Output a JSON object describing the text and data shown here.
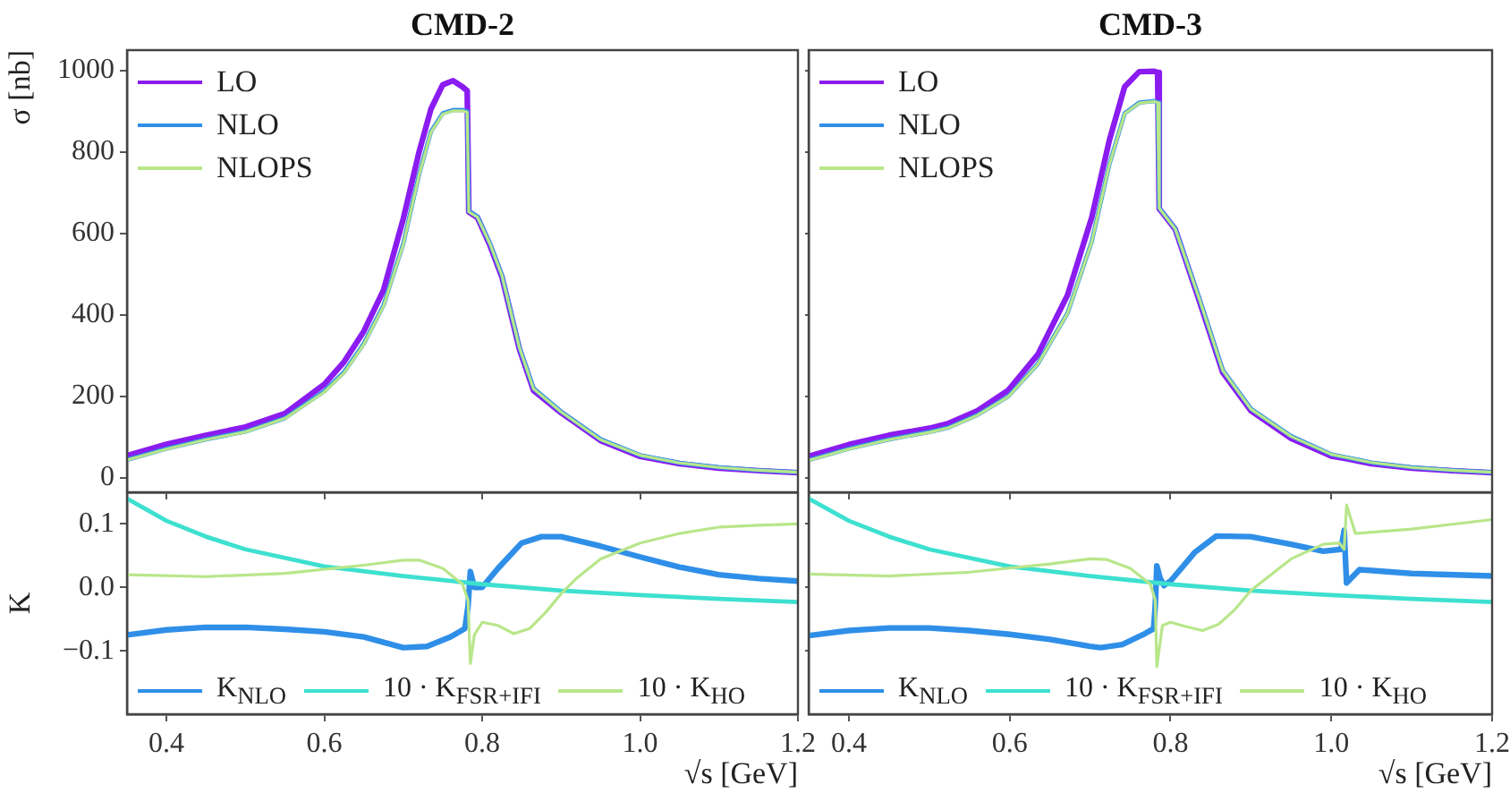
{
  "chart_data": [
    {
      "type": "line",
      "title": "CMD-2",
      "ylabel": "σ [nb]",
      "xlim": [
        0.35,
        1.2
      ],
      "xticks": [
        0.4,
        0.6,
        0.8,
        1,
        1.2
      ],
      "ylim": [
        -35,
        1050
      ],
      "yticks": [
        0,
        200,
        400,
        600,
        800,
        1000
      ],
      "tick_labels": "y",
      "legend": "top left",
      "series": [
        {
          "name": "LO",
          "color": "#8a1cf0",
          "x": [
            0.35,
            0.4,
            0.45,
            0.5,
            0.55,
            0.6,
            0.625,
            0.65,
            0.675,
            0.7,
            0.72,
            0.735,
            0.75,
            0.763,
            0.775,
            0.781,
            0.783,
            0.794,
            0.81,
            0.825,
            0.847,
            0.865,
            0.9,
            0.95,
            1.0,
            1.05,
            1.1,
            1.15,
            1.2
          ],
          "values": [
            55,
            83,
            105,
            125,
            158,
            230,
            285,
            360,
            461,
            636,
            800,
            905,
            965,
            975,
            960,
            950,
            653,
            639,
            570,
            493,
            317,
            215,
            160,
            92,
            53,
            35,
            24,
            18,
            13
          ]
        },
        {
          "name": "NLO",
          "color": "#2f8fe8",
          "x": [
            0.35,
            0.4,
            0.45,
            0.5,
            0.55,
            0.6,
            0.625,
            0.65,
            0.675,
            0.7,
            0.72,
            0.735,
            0.75,
            0.763,
            0.775,
            0.781,
            0.783,
            0.794,
            0.81,
            0.825,
            0.847,
            0.865,
            0.9,
            0.95,
            1.0,
            1.05,
            1.1,
            1.15,
            1.2
          ],
          "values": [
            45,
            72,
            95,
            114,
            147,
            213,
            260,
            330,
            424,
            575,
            745,
            850,
            895,
            903,
            903,
            900,
            655,
            642,
            575,
            498,
            322,
            220,
            163,
            95,
            56,
            37,
            26,
            19,
            14
          ]
        },
        {
          "name": "NLOPS",
          "color": "#b8e68a",
          "x": [
            0.35,
            0.4,
            0.45,
            0.5,
            0.55,
            0.6,
            0.625,
            0.65,
            0.675,
            0.7,
            0.72,
            0.735,
            0.75,
            0.763,
            0.775,
            0.781,
            0.783,
            0.794,
            0.81,
            0.825,
            0.847,
            0.865,
            0.9,
            0.95,
            1.0,
            1.05,
            1.1,
            1.15,
            1.2
          ],
          "values": [
            44,
            71,
            94,
            113,
            146,
            211,
            258,
            328,
            422,
            573,
            743,
            848,
            893,
            901,
            901,
            898,
            653,
            640,
            574,
            497,
            321,
            219,
            162,
            94,
            56,
            37,
            26,
            19,
            14
          ]
        }
      ]
    },
    {
      "type": "line",
      "title": "CMD-3",
      "xlim": [
        0.35,
        1.2
      ],
      "xticks": [
        0.4,
        0.6,
        0.8,
        1,
        1.2
      ],
      "ylim": [
        -35,
        1050
      ],
      "yticks": [
        0,
        200,
        400,
        600,
        800,
        1000
      ],
      "tick_labels": false,
      "legend": "top left",
      "series": [
        {
          "name": "LO",
          "color": "#8a1cf0",
          "x": [
            0.35,
            0.4,
            0.45,
            0.5,
            0.524,
            0.56,
            0.598,
            0.635,
            0.672,
            0.702,
            0.724,
            0.743,
            0.761,
            0.78,
            0.784,
            0.786,
            0.806,
            0.836,
            0.865,
            0.9,
            0.95,
            1.0,
            1.02,
            1.05,
            1.1,
            1.15,
            1.2
          ],
          "values": [
            53,
            82,
            105,
            122,
            134,
            165,
            215,
            303,
            449,
            639,
            829,
            960,
            997,
            998,
            995,
            661,
            610,
            434,
            259,
            165,
            97,
            54,
            47,
            35,
            24,
            18,
            13
          ]
        },
        {
          "name": "NLO",
          "color": "#2f8fe8",
          "x": [
            0.35,
            0.4,
            0.45,
            0.5,
            0.524,
            0.56,
            0.598,
            0.635,
            0.672,
            0.702,
            0.724,
            0.743,
            0.761,
            0.78,
            0.784,
            0.786,
            0.806,
            0.836,
            0.865,
            0.9,
            0.95,
            1.0,
            1.02,
            1.05,
            1.1,
            1.15,
            1.2
          ],
          "values": [
            44,
            72,
            95,
            113,
            124,
            155,
            200,
            280,
            405,
            580,
            770,
            895,
            921,
            925,
            922,
            663,
            612,
            440,
            265,
            170,
            103,
            58,
            50,
            38,
            26,
            19,
            14
          ]
        },
        {
          "name": "NLOPS",
          "color": "#b8e68a",
          "x": [
            0.35,
            0.4,
            0.45,
            0.5,
            0.524,
            0.56,
            0.598,
            0.635,
            0.672,
            0.702,
            0.724,
            0.743,
            0.761,
            0.78,
            0.784,
            0.786,
            0.806,
            0.836,
            0.865,
            0.9,
            0.95,
            1.0,
            1.02,
            1.05,
            1.1,
            1.15,
            1.2
          ],
          "values": [
            43,
            71,
            94,
            112,
            123,
            154,
            199,
            279,
            404,
            579,
            769,
            894,
            920,
            924,
            921,
            662,
            611,
            439,
            264,
            169,
            102,
            58,
            50,
            38,
            26,
            19,
            14
          ]
        }
      ]
    },
    {
      "type": "line",
      "ylabel": "K",
      "xlabel": "√s [GeV]",
      "xlim": [
        0.35,
        1.2
      ],
      "xticks": [
        0.4,
        0.6,
        0.8,
        {
          "value": 1.0,
          "label": "1.0"
        },
        1.2
      ],
      "ylim": [
        -0.2,
        0.15
      ],
      "yticks": [
        {
          "value": -0.1,
          "label": "−0.1"
        },
        {
          "value": 0,
          "label": "0.0"
        },
        0.1
      ],
      "legend": "bottom",
      "series": [
        {
          "name": "K$_{NLO}$",
          "color": "#2f8fe8",
          "x": [
            0.35,
            0.4,
            0.45,
            0.5,
            0.55,
            0.6,
            0.65,
            0.7,
            0.73,
            0.76,
            0.778,
            0.782,
            0.785,
            0.79,
            0.8,
            0.82,
            0.85,
            0.875,
            0.9,
            0.95,
            1.0,
            1.05,
            1.1,
            1.15,
            1.2
          ],
          "values": [
            -0.075,
            -0.067,
            -0.063,
            -0.063,
            -0.066,
            -0.07,
            -0.078,
            -0.095,
            -0.093,
            -0.078,
            -0.065,
            -0.03,
            0.025,
            0.0,
            0.0,
            0.03,
            0.07,
            0.08,
            0.08,
            0.065,
            0.048,
            0.032,
            0.02,
            0.014,
            0.01
          ]
        },
        {
          "name": "10 · K$_{FSR+IFI}$",
          "color": "#3ee0cf",
          "x": [
            0.35,
            0.4,
            0.45,
            0.5,
            0.6,
            0.7,
            0.8,
            0.9,
            1.0,
            1.1,
            1.2
          ],
          "values": [
            0.14,
            0.105,
            0.08,
            0.06,
            0.033,
            0.018,
            0.005,
            -0.005,
            -0.012,
            -0.018,
            -0.023
          ]
        },
        {
          "name": "10 · K$_{HO}$",
          "color": "#b8e68a",
          "x": [
            0.35,
            0.45,
            0.55,
            0.65,
            0.7,
            0.72,
            0.75,
            0.775,
            0.782,
            0.785,
            0.79,
            0.8,
            0.82,
            0.84,
            0.86,
            0.88,
            0.9,
            0.92,
            0.95,
            1.0,
            1.05,
            1.1,
            1.15,
            1.2
          ],
          "values": [
            0.02,
            0.017,
            0.022,
            0.035,
            0.043,
            0.043,
            0.03,
            0.005,
            -0.02,
            -0.12,
            -0.075,
            -0.055,
            -0.06,
            -0.073,
            -0.065,
            -0.04,
            -0.01,
            0.015,
            0.045,
            0.07,
            0.085,
            0.095,
            0.098,
            0.1
          ]
        }
      ]
    },
    {
      "type": "line",
      "xlabel": "√s [GeV]",
      "xlim": [
        0.35,
        1.2
      ],
      "xticks": [
        0.4,
        0.6,
        0.8,
        {
          "value": 1.0,
          "label": "1.0"
        },
        1.2
      ],
      "ylim": [
        -0.2,
        0.15
      ],
      "yticks": [
        -0.1,
        0,
        0.1
      ],
      "tick_labels": "x",
      "legend": "bottom",
      "series": [
        {
          "name": "K$_{NLO}$",
          "color": "#2f8fe8",
          "x": [
            0.35,
            0.4,
            0.45,
            0.5,
            0.55,
            0.6,
            0.65,
            0.7,
            0.713,
            0.74,
            0.765,
            0.779,
            0.781,
            0.783,
            0.787,
            0.792,
            0.8,
            0.83,
            0.857,
            0.9,
            0.95,
            0.99,
            1.012,
            1.016,
            1.019,
            1.035,
            1.1,
            1.2
          ],
          "values": [
            -0.076,
            -0.068,
            -0.064,
            -0.064,
            -0.068,
            -0.074,
            -0.082,
            -0.093,
            -0.095,
            -0.09,
            -0.075,
            -0.065,
            -0.03,
            0.034,
            0.015,
            0.003,
            0.01,
            0.055,
            0.081,
            0.08,
            0.068,
            0.057,
            0.06,
            0.09,
            0.007,
            0.028,
            0.022,
            0.018
          ]
        },
        {
          "name": "10 · K$_{FSR+IFI}$",
          "color": "#3ee0cf",
          "x": [
            0.35,
            0.4,
            0.45,
            0.5,
            0.6,
            0.7,
            0.8,
            0.9,
            1.0,
            1.1,
            1.2
          ],
          "values": [
            0.14,
            0.105,
            0.08,
            0.06,
            0.033,
            0.018,
            0.005,
            -0.005,
            -0.012,
            -0.018,
            -0.023
          ]
        },
        {
          "name": "10 · K$_{HO}$",
          "color": "#b8e68a",
          "x": [
            0.35,
            0.45,
            0.55,
            0.65,
            0.7,
            0.72,
            0.75,
            0.775,
            0.781,
            0.783,
            0.79,
            0.8,
            0.82,
            0.84,
            0.86,
            0.88,
            0.9,
            0.95,
            0.99,
            1.01,
            1.016,
            1.019,
            1.03,
            1.1,
            1.2
          ],
          "values": [
            0.021,
            0.018,
            0.024,
            0.037,
            0.045,
            0.044,
            0.03,
            0.005,
            -0.02,
            -0.125,
            -0.06,
            -0.055,
            -0.062,
            -0.068,
            -0.058,
            -0.035,
            -0.005,
            0.045,
            0.068,
            0.07,
            0.06,
            0.13,
            0.085,
            0.092,
            0.107
          ]
        }
      ]
    }
  ]
}
